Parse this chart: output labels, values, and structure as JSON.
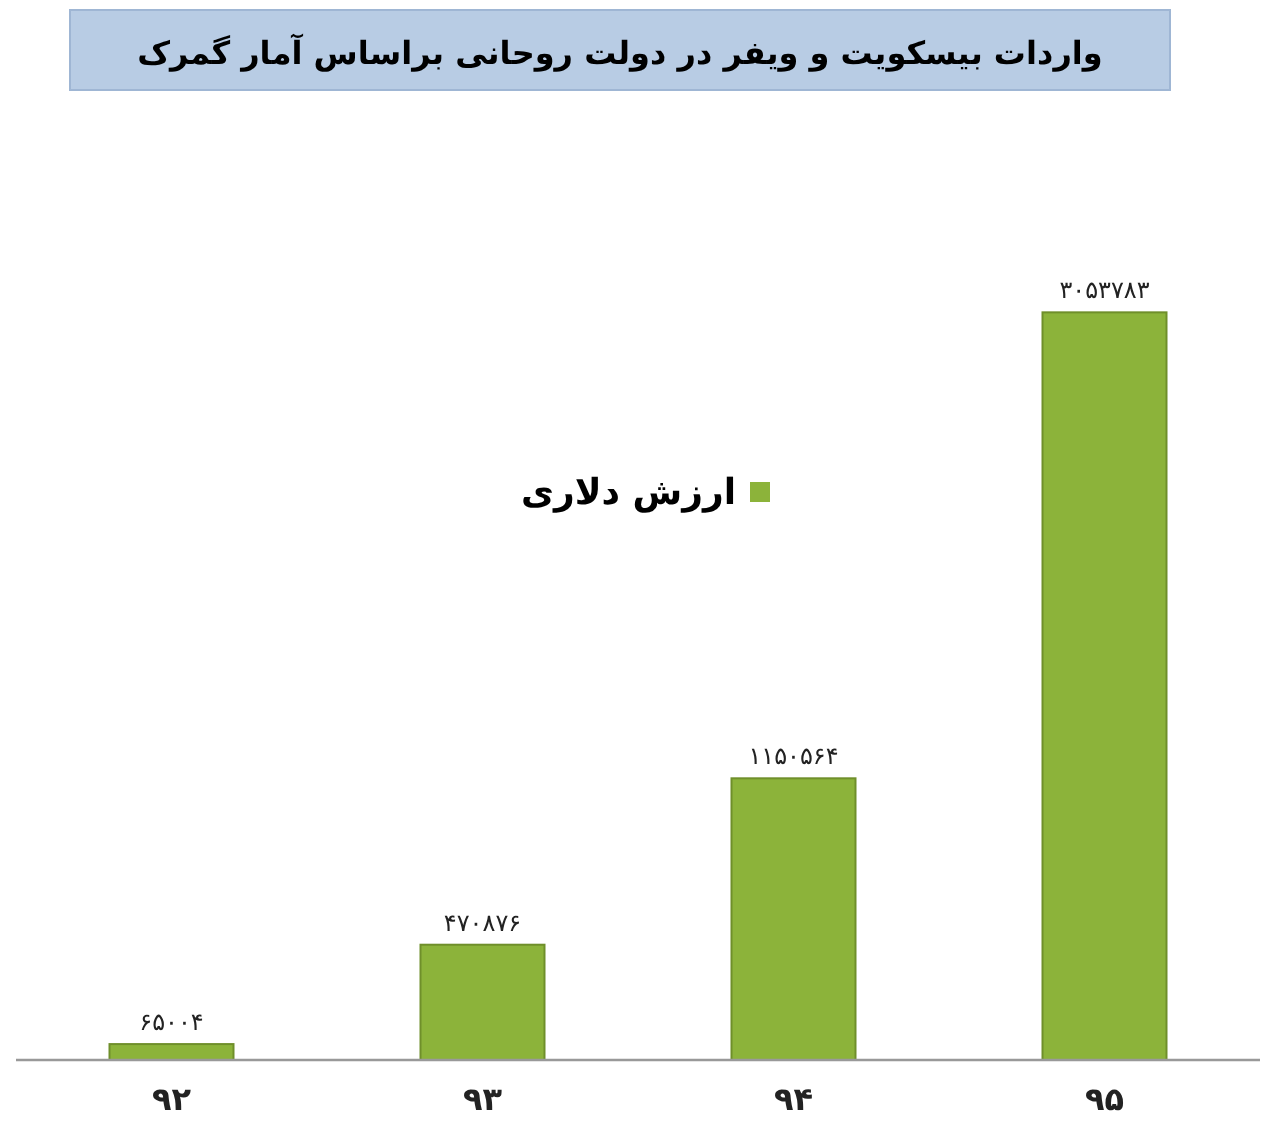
{
  "chart_data": {
    "type": "bar",
    "title": "واردات بیسکویت و ویفر در دولت روحانی براساس آمار گمرک",
    "categories": [
      "۹۲",
      "۹۳",
      "۹۴",
      "۹۵"
    ],
    "series": [
      {
        "name": "ارزش دلاری",
        "color": "#8cb33a",
        "values": [
          65004,
          470876,
          1150564,
          3053783
        ],
        "value_labels": [
          "۶۵۰۰۴",
          "۴۷۰۸۷۶",
          "۱۱۵۰۵۶۴",
          "۳۰۵۳۷۸۳"
        ]
      }
    ],
    "legend": "top",
    "grid": false
  }
}
